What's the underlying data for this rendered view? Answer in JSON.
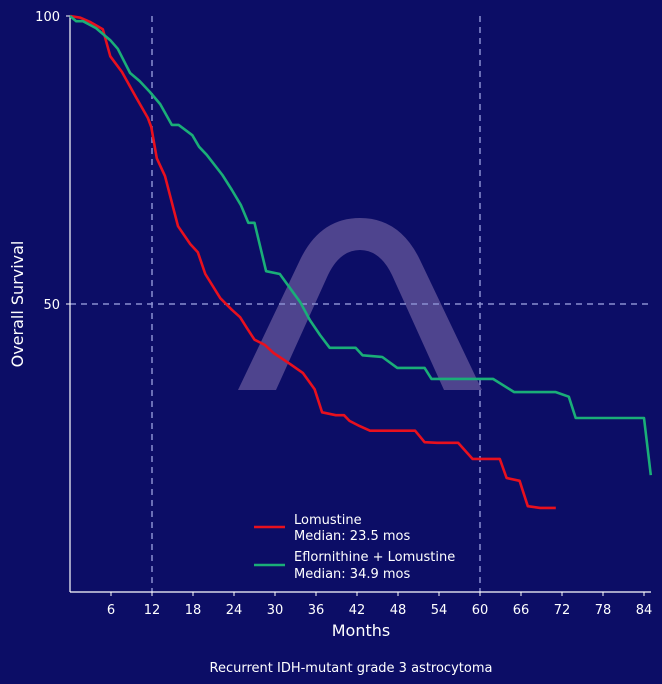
{
  "chart_data": {
    "type": "line",
    "subtype": "kaplan-meier step survival curves",
    "title": "",
    "caption": "Recurrent IDH-mutant grade 3 astrocytoma",
    "xlabel": "Months",
    "ylabel": "Overall Survival",
    "xlim": [
      0,
      85
    ],
    "ylim": [
      0,
      100
    ],
    "x_ticks": [
      6,
      12,
      18,
      24,
      30,
      36,
      42,
      48,
      54,
      60,
      66,
      72,
      78,
      84
    ],
    "y_ticks": [
      50,
      100
    ],
    "grid": false,
    "reference_lines": {
      "vertical": [
        12,
        60
      ],
      "horizontal": [
        50
      ],
      "style": "dashed"
    },
    "legend_position": "lower center",
    "series": [
      {
        "name": "Lomustine",
        "legend_label": "Lomustine",
        "legend_sublabel": "Median: 23.5 mos",
        "median_months": 23.5,
        "color": "#e8101e",
        "x": [
          0,
          1.5,
          2.9,
          4.8,
          5.9,
          7.6,
          9.7,
          11.4,
          11.9,
          12.7,
          13.9,
          15.8,
          17.6,
          18.7,
          19.8,
          22,
          23.7,
          24.9,
          25.9,
          27,
          28.5,
          29.8,
          32.2,
          34.1,
          35.8,
          36.9,
          38.9,
          40.1,
          40.9,
          42.4,
          43.9,
          50.5,
          51.9,
          53.7,
          56.8,
          58.9,
          62.9,
          63.9,
          65.8,
          67,
          68.8,
          71.1
        ],
        "y": [
          100,
          99.7,
          99,
          97.7,
          93,
          90.3,
          85.8,
          82.3,
          80.7,
          75.3,
          72.2,
          63.5,
          60.4,
          59,
          55.2,
          51,
          49,
          47.7,
          45.8,
          43.8,
          42.9,
          41.5,
          39.6,
          38,
          35.2,
          31.2,
          30.7,
          30.7,
          29.7,
          28.8,
          28,
          28,
          26,
          25.9,
          25.9,
          23.1,
          23.1,
          19.8,
          19.3,
          14.9,
          14.6,
          14.6
        ]
      },
      {
        "name": "Eflornithine + Lomustine",
        "legend_label": "Eflornithine + Lomustine",
        "legend_sublabel": "Median: 34.9 mos",
        "median_months": 34.9,
        "color": "#1aae78",
        "x": [
          0,
          0.9,
          1.9,
          3.8,
          5.9,
          7,
          8.8,
          10.2,
          11.7,
          13.2,
          14.9,
          15.9,
          17.9,
          18.9,
          20,
          22.3,
          23.7,
          25,
          26.1,
          27,
          28.7,
          30.7,
          33.7,
          35.1,
          36.6,
          38,
          41.8,
          42.8,
          45.7,
          47.9,
          51.9,
          52.9,
          61.9,
          65,
          71.1,
          73,
          74,
          84,
          85
        ],
        "y": [
          100,
          99.1,
          99.1,
          97.9,
          95.8,
          94.3,
          90.1,
          88.7,
          86.8,
          84.7,
          81.1,
          81.1,
          79.3,
          77.3,
          75.9,
          72.4,
          69.8,
          67.2,
          64.1,
          64.1,
          55.7,
          55.2,
          50.3,
          47.2,
          44.6,
          42.4,
          42.4,
          41.1,
          40.8,
          38.9,
          38.9,
          37,
          37,
          34.7,
          34.7,
          33.9,
          30.2,
          30.2,
          20.3
        ]
      }
    ]
  },
  "colors": {
    "background": "#0c0d66",
    "axis": "#ffffff",
    "reference_line": "#8a8fd0",
    "watermark": "#5a4f95"
  },
  "watermark": {
    "icon": "arch-logo-icon"
  }
}
